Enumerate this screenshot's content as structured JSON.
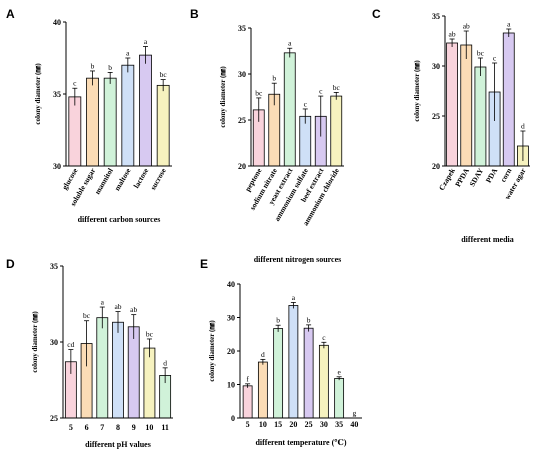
{
  "chart_data": [
    {
      "id": "A",
      "type": "bar",
      "panel_label": "A",
      "xlabel": "different carbon sources",
      "ylabel": "colony diameter (㎜)",
      "ylim": [
        30,
        40
      ],
      "yticks": [
        30,
        35,
        40
      ],
      "categories": [
        "glucose",
        "soluble sugar",
        "mannitol",
        "maltose",
        "lactose",
        "sucrose"
      ],
      "values": [
        34.8,
        36.1,
        36.1,
        37.0,
        37.7,
        35.6
      ],
      "errors": [
        0.6,
        0.5,
        0.4,
        0.5,
        0.6,
        0.4
      ],
      "sig": [
        "c",
        "b",
        "b",
        "a",
        "a",
        "bc"
      ],
      "colors": [
        "#f9d3dc",
        "#fbdcb6",
        "#d0f2d9",
        "#cfe0f7",
        "#d7c9f1",
        "#f6f2bf"
      ]
    },
    {
      "id": "B",
      "type": "bar",
      "panel_label": "B",
      "xlabel": "different nitrogen sources",
      "ylabel": "colony diameter (㎜)",
      "ylim": [
        20,
        35
      ],
      "yticks": [
        20,
        25,
        30,
        35
      ],
      "categories": [
        "peptone",
        "sodium nitrate",
        "yeast extract",
        "ammonium sulfate",
        "beef extract",
        "ammonium chloride"
      ],
      "values": [
        26.1,
        27.8,
        32.3,
        25.4,
        25.4,
        27.6
      ],
      "errors": [
        1.3,
        1.2,
        0.5,
        0.8,
        2.2,
        0.4
      ],
      "sig": [
        "bc",
        "b",
        "a",
        "c",
        "c",
        "bc"
      ],
      "colors": [
        "#f9d3dc",
        "#fbdcb6",
        "#d0f2d9",
        "#cfe0f7",
        "#d7c9f1",
        "#f6f2bf"
      ]
    },
    {
      "id": "C",
      "type": "bar",
      "panel_label": "C",
      "xlabel": "different media",
      "ylabel": "colony diameter (㎜)",
      "ylim": [
        20,
        35
      ],
      "yticks": [
        20,
        25,
        30,
        35
      ],
      "categories": [
        "Czapek",
        "PPDA",
        "SDAY",
        "PDA",
        "corn",
        "water agar"
      ],
      "values": [
        32.3,
        32.1,
        29.9,
        27.4,
        33.3,
        22.0
      ],
      "errors": [
        0.4,
        1.4,
        0.9,
        2.9,
        0.4,
        1.5
      ],
      "sig": [
        "ab",
        "ab",
        "bc",
        "c",
        "a",
        "d"
      ],
      "colors": [
        "#f9d3dc",
        "#fbdcb6",
        "#d0f2d9",
        "#cfe0f7",
        "#d7c9f1",
        "#f6f2bf"
      ]
    },
    {
      "id": "D",
      "type": "bar",
      "panel_label": "D",
      "xlabel": "different pH values",
      "ylabel": "colony diameter (㎜)",
      "ylim": [
        25,
        35
      ],
      "yticks": [
        25,
        30,
        35
      ],
      "categories": [
        "5",
        "6",
        "7",
        "8",
        "9",
        "10",
        "11"
      ],
      "values": [
        28.7,
        29.9,
        31.6,
        31.3,
        31.0,
        29.6,
        27.8
      ],
      "errors": [
        0.8,
        1.5,
        0.7,
        0.7,
        0.8,
        0.6,
        0.5
      ],
      "sig": [
        "cd",
        "bc",
        "a",
        "ab",
        "ab",
        "bc",
        "d"
      ],
      "colors": [
        "#f9d3dc",
        "#fbdcb6",
        "#d0f2d9",
        "#cfe0f7",
        "#d7c9f1",
        "#f6f2bf",
        "#d0f2d9"
      ]
    },
    {
      "id": "E",
      "type": "bar",
      "panel_label": "E",
      "xlabel": "different temperature (℃)",
      "ylabel": "colony diameter (㎜)",
      "ylim": [
        0,
        40
      ],
      "yticks": [
        0,
        10,
        20,
        30,
        40
      ],
      "categories": [
        "5",
        "10",
        "15",
        "20",
        "25",
        "30",
        "35",
        "40"
      ],
      "values": [
        9.6,
        16.7,
        26.7,
        33.6,
        26.8,
        21.7,
        11.8,
        0
      ],
      "errors": [
        0.6,
        0.8,
        1.0,
        0.9,
        1.0,
        0.9,
        0.5,
        0
      ],
      "sig": [
        "f",
        "d",
        "b",
        "a",
        "b",
        "c",
        "e",
        "g"
      ],
      "colors": [
        "#f9d3dc",
        "#fbdcb6",
        "#d0f2d9",
        "#cfe0f7",
        "#d7c9f1",
        "#f6f2bf",
        "#d0f2d9",
        "#cfe0f7"
      ]
    }
  ]
}
